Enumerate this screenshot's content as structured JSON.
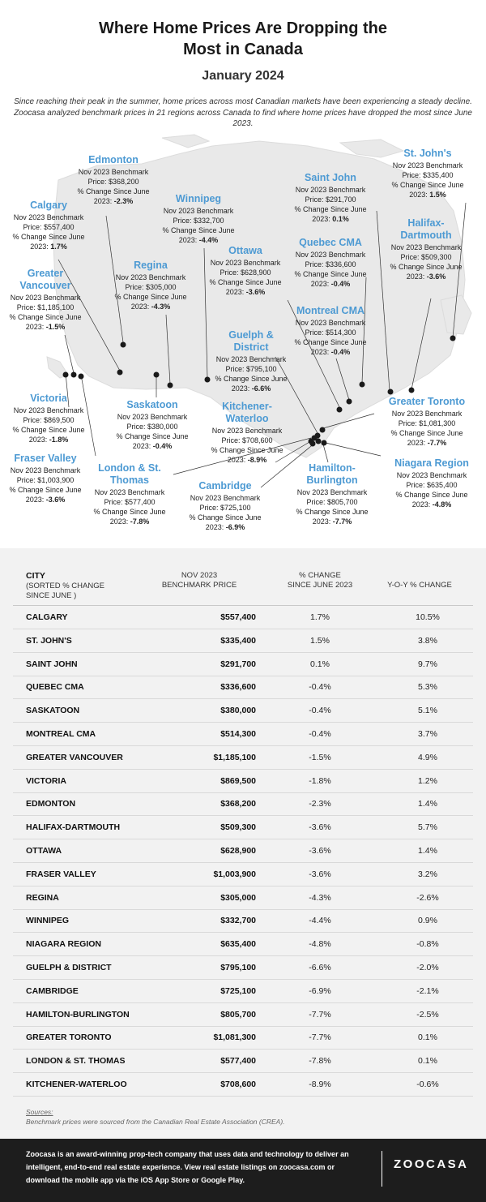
{
  "title_line1": "Where Home Prices Are Dropping the",
  "title_line2": "Most in Canada",
  "subtitle": "January 2024",
  "intro": "Since reaching their peak in the summer, home prices across most Canadian markets have been experiencing a steady decline. Zoocasa analyzed benchmark prices in 21 regions across Canada to find where home prices have dropped the most since June 2023.",
  "map": {
    "benchmark_text": "Nov 2023 Benchmark",
    "price_prefix": "Price: ",
    "change_text": "% Change Since June",
    "year_text": "2023: ",
    "land_color": "#e9e9e9",
    "marker_color": "#1a1a1a",
    "label_color": "#4d9ad3"
  },
  "table": {
    "headers": {
      "city": "CITY",
      "city_note_1": "(SORTED % CHANGE",
      "city_note_2": "SINCE JUNE )",
      "price_1": "NOV 2023",
      "price_2": "BENCHMARK PRICE",
      "pct_1": "% CHANGE",
      "pct_2": "SINCE JUNE 2023",
      "yoy": "Y-O-Y % CHANGE"
    },
    "rows": [
      {
        "city": "CALGARY",
        "price": "$557,400",
        "pct": "1.7%",
        "yoy": "10.5%"
      },
      {
        "city": "ST. JOHN'S",
        "price": "$335,400",
        "pct": "1.5%",
        "yoy": "3.8%"
      },
      {
        "city": "SAINT JOHN",
        "price": "$291,700",
        "pct": "0.1%",
        "yoy": "9.7%"
      },
      {
        "city": "QUEBEC CMA",
        "price": "$336,600",
        "pct": "-0.4%",
        "yoy": "5.3%"
      },
      {
        "city": "SASKATOON",
        "price": "$380,000",
        "pct": "-0.4%",
        "yoy": "5.1%"
      },
      {
        "city": "MONTREAL CMA",
        "price": "$514,300",
        "pct": "-0.4%",
        "yoy": "3.7%"
      },
      {
        "city": "GREATER VANCOUVER",
        "price": "$1,185,100",
        "pct": "-1.5%",
        "yoy": "4.9%"
      },
      {
        "city": "VICTORIA",
        "price": "$869,500",
        "pct": "-1.8%",
        "yoy": "1.2%"
      },
      {
        "city": "EDMONTON",
        "price": "$368,200",
        "pct": "-2.3%",
        "yoy": "1.4%"
      },
      {
        "city": "HALIFAX-DARTMOUTH",
        "price": "$509,300",
        "pct": "-3.6%",
        "yoy": "5.7%"
      },
      {
        "city": "OTTAWA",
        "price": "$628,900",
        "pct": "-3.6%",
        "yoy": "1.4%"
      },
      {
        "city": "FRASER VALLEY",
        "price": "$1,003,900",
        "pct": "-3.6%",
        "yoy": "3.2%"
      },
      {
        "city": "REGINA",
        "price": "$305,000",
        "pct": "-4.3%",
        "yoy": "-2.6%"
      },
      {
        "city": "WINNIPEG",
        "price": "$332,700",
        "pct": "-4.4%",
        "yoy": "0.9%"
      },
      {
        "city": "NIAGARA REGION",
        "price": "$635,400",
        "pct": "-4.8%",
        "yoy": "-0.8%"
      },
      {
        "city": "GUELPH & DISTRICT",
        "price": "$795,100",
        "pct": "-6.6%",
        "yoy": "-2.0%"
      },
      {
        "city": "CAMBRIDGE",
        "price": "$725,100",
        "pct": "-6.9%",
        "yoy": "-2.1%"
      },
      {
        "city": "HAMILTON-BURLINGTON",
        "price": "$805,700",
        "pct": "-7.7%",
        "yoy": "-2.5%"
      },
      {
        "city": "GREATER TORONTO",
        "price": "$1,081,300",
        "pct": "-7.7%",
        "yoy": "0.1%"
      },
      {
        "city": "LONDON & ST. THOMAS",
        "price": "$577,400",
        "pct": "-7.8%",
        "yoy": "0.1%"
      },
      {
        "city": "KITCHENER-WATERLOO",
        "price": "$708,600",
        "pct": "-8.9%",
        "yoy": "-0.6%"
      }
    ]
  },
  "chart_data": {
    "type": "table",
    "title": "Where Home Prices Are Dropping the Most in Canada",
    "subtitle": "January 2024",
    "columns": [
      "CITY",
      "NOV 2023 BENCHMARK PRICE",
      "% CHANGE SINCE JUNE 2023",
      "Y-O-Y % CHANGE"
    ],
    "map_regions": [
      {
        "name": "Edmonton",
        "price": "$368,200",
        "change": "-2.3%"
      },
      {
        "name": "Calgary",
        "price": "$557,400",
        "change": "1.7%"
      },
      {
        "name": "Winnipeg",
        "price": "$332,700",
        "change": "-4.4%"
      },
      {
        "name": "Regina",
        "price": "$305,000",
        "change": "-4.3%"
      },
      {
        "name": "Greater Vancouver",
        "price": "$1,185,100",
        "change": "-1.5%"
      },
      {
        "name": "Victoria",
        "price": "$869,500",
        "change": "-1.8%"
      },
      {
        "name": "Fraser Valley",
        "price": "$1,003,900",
        "change": "-3.6%"
      },
      {
        "name": "Saskatoon",
        "price": "$380,000",
        "change": "-0.4%"
      },
      {
        "name": "London & St. Thomas",
        "price": "$577,400",
        "change": "-7.8%"
      },
      {
        "name": "Kitchener-Waterloo",
        "price": "$708,600",
        "change": "-8.9%"
      },
      {
        "name": "Cambridge",
        "price": "$725,100",
        "change": "-6.9%"
      },
      {
        "name": "Hamilton-Burlington",
        "price": "$805,700",
        "change": "-7.7%"
      },
      {
        "name": "Guelph & District",
        "price": "$795,100",
        "change": "-6.6%"
      },
      {
        "name": "Ottawa",
        "price": "$628,900",
        "change": "-3.6%"
      },
      {
        "name": "Saint John",
        "price": "$291,700",
        "change": "0.1%"
      },
      {
        "name": "Quebec CMA",
        "price": "$336,600",
        "change": "-0.4%"
      },
      {
        "name": "Montreal CMA",
        "price": "$514,300",
        "change": "-0.4%"
      },
      {
        "name": "St. John's",
        "price": "$335,400",
        "change": "1.5%"
      },
      {
        "name": "Halifax-Dartmouth",
        "price": "$509,300",
        "change": "-3.6%"
      },
      {
        "name": "Greater Toronto",
        "price": "$1,081,300",
        "change": "-7.7%"
      },
      {
        "name": "Niagara Region",
        "price": "$635,400",
        "change": "-4.8%"
      }
    ]
  },
  "sources_label": "Sources:",
  "sources_text": "Benchmark prices were sourced from the Canadian Real Estate Association (CREA).",
  "footer_text": "Zoocasa is an award-winning prop-tech company that uses data and technology to deliver an intelligent, end-to-end real estate experience. View real estate listings on zoocasa.com or download the mobile app via the iOS App Store or Google Play.",
  "logo_text": "ZOOCASA"
}
